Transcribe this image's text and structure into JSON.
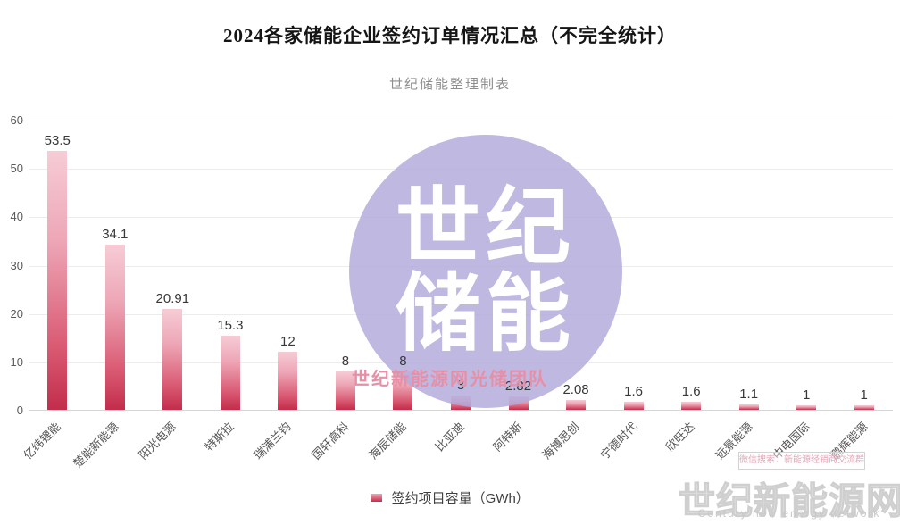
{
  "title": "2024各家储能企业签约订单情况汇总（不完全统计）",
  "subtitle": "世纪储能整理制表",
  "legend": {
    "label": "签约项目容量（GWh）"
  },
  "watermark": {
    "circle_line1": "世纪",
    "circle_line2": "储能",
    "team_text": "世纪新能源网光储团队",
    "badge_text": "微信搜索：新能源经销商交流群",
    "site_name": "世纪新能源网",
    "site_name_en": "Century new energy network",
    "circle_color": "#b1a9db",
    "team_text_color": "#e78fa6"
  },
  "chart_data": {
    "type": "bar",
    "title": "2024各家储能企业签约订单情况汇总（不完全统计）",
    "categories": [
      "亿纬锂能",
      "楚能新能源",
      "阳光电源",
      "特斯拉",
      "瑞浦兰钧",
      "国轩高科",
      "海辰储能",
      "比亚迪",
      "阿特斯",
      "海博思创",
      "宁德时代",
      "欣旺达",
      "远景能源",
      "中电国际",
      "鹏辉能源"
    ],
    "values": [
      53.5,
      34.1,
      20.91,
      15.3,
      12,
      8,
      8,
      3,
      2.82,
      2.08,
      1.6,
      1.6,
      1.1,
      1,
      1
    ],
    "series_name": "签约项目容量（GWh）",
    "xlabel": "",
    "ylabel": "GWh",
    "ylim": [
      0,
      60
    ],
    "yticks": [
      0,
      10,
      20,
      30,
      40,
      50,
      60
    ],
    "grid": true,
    "legend_position": "bottom",
    "bar_color_top": "#f6ccd6",
    "bar_color_bottom": "#c22d4b",
    "value_label_color": "#383838"
  }
}
